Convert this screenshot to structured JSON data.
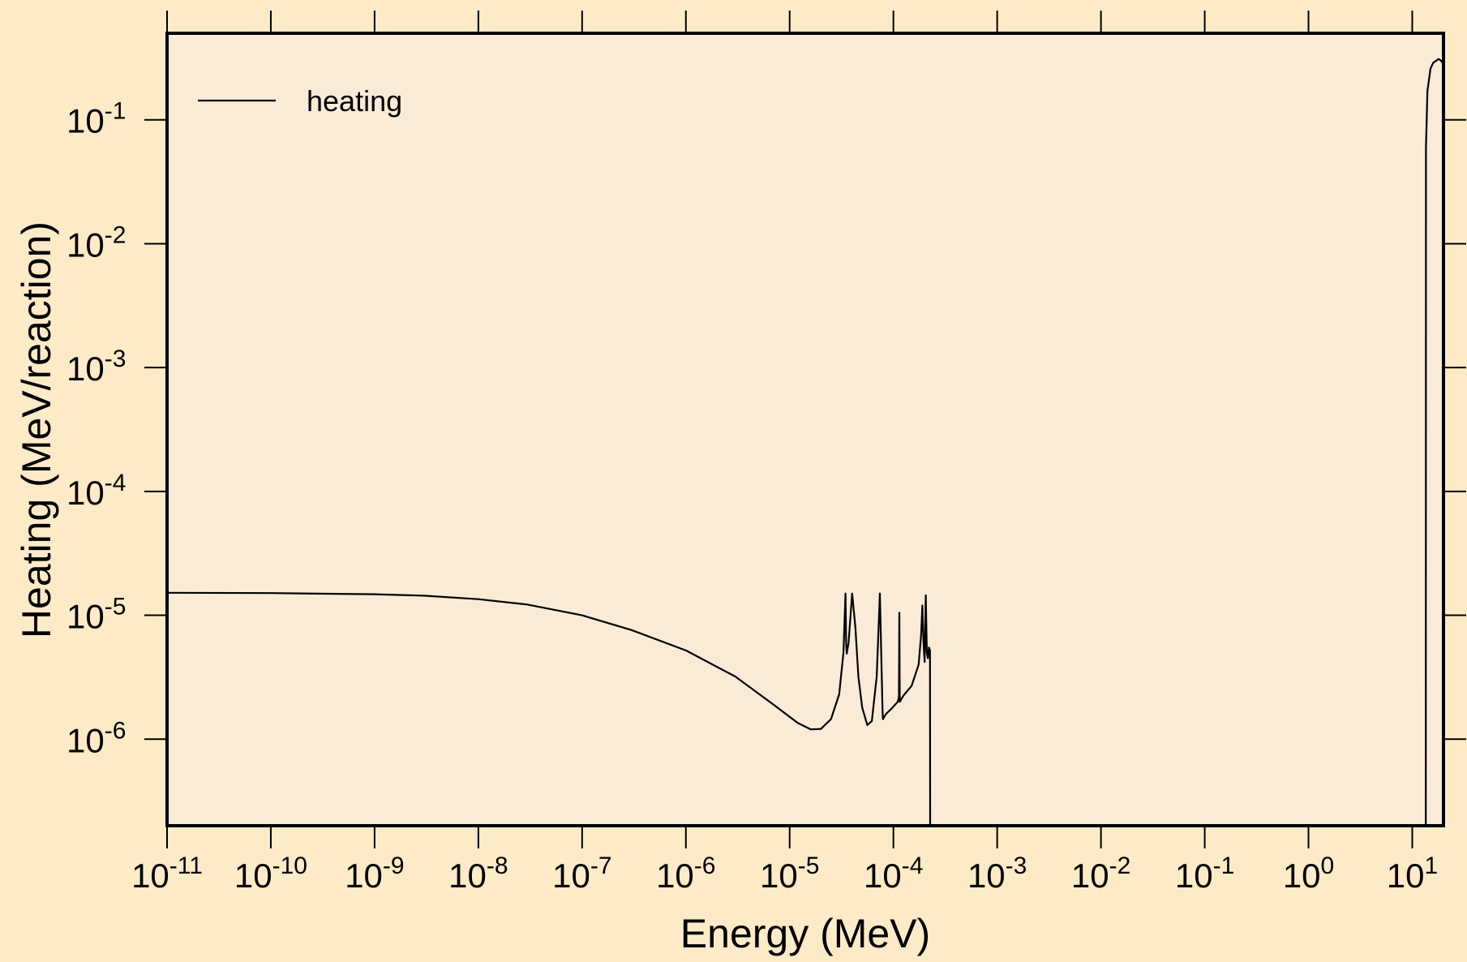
{
  "chart_data": {
    "type": "line",
    "title": "",
    "xlabel": "Energy (MeV)",
    "ylabel": "Heating (MeV/reaction)",
    "xscale": "log",
    "yscale": "log",
    "xlim": [
      1e-11,
      20
    ],
    "ylim": [
      2e-07,
      0.5
    ],
    "grid": false,
    "legend_position": "top-left",
    "background_color": "#fdebc8",
    "plot_background_color": "#faebd7",
    "line_color": "#000000",
    "x_ticks": [
      {
        "value": 1e-11,
        "base": "10",
        "exp": "-11"
      },
      {
        "value": 1e-10,
        "base": "10",
        "exp": "-10"
      },
      {
        "value": 1e-09,
        "base": "10",
        "exp": "-9"
      },
      {
        "value": 1e-08,
        "base": "10",
        "exp": "-8"
      },
      {
        "value": 1e-07,
        "base": "10",
        "exp": "-7"
      },
      {
        "value": 1e-06,
        "base": "10",
        "exp": "-6"
      },
      {
        "value": 1e-05,
        "base": "10",
        "exp": "-5"
      },
      {
        "value": 0.0001,
        "base": "10",
        "exp": "-4"
      },
      {
        "value": 0.001,
        "base": "10",
        "exp": "-3"
      },
      {
        "value": 0.01,
        "base": "10",
        "exp": "-2"
      },
      {
        "value": 0.1,
        "base": "10",
        "exp": "-1"
      },
      {
        "value": 1,
        "base": "10",
        "exp": "0"
      },
      {
        "value": 10,
        "base": "10",
        "exp": "1"
      }
    ],
    "y_ticks": [
      {
        "value": 1e-06,
        "base": "10",
        "exp": "-6"
      },
      {
        "value": 1e-05,
        "base": "10",
        "exp": "-5"
      },
      {
        "value": 0.0001,
        "base": "10",
        "exp": "-4"
      },
      {
        "value": 0.001,
        "base": "10",
        "exp": "-3"
      },
      {
        "value": 0.01,
        "base": "10",
        "exp": "-2"
      },
      {
        "value": 0.1,
        "base": "10",
        "exp": "-1"
      }
    ],
    "series": [
      {
        "name": "heating",
        "x": [
          1e-11,
          1e-10,
          1e-09,
          3e-09,
          1e-08,
          3e-08,
          1e-07,
          3e-07,
          1e-06,
          3e-06,
          7e-06,
          1.2e-05,
          1.6e-05,
          2e-05,
          2.5e-05,
          3e-05,
          3.3e-05,
          3.45e-05,
          3.5e-05,
          3.55e-05,
          3.7e-05,
          4e-05,
          4.3e-05,
          4.6e-05,
          5e-05,
          5.6e-05,
          6.2e-05,
          6.9e-05,
          7.4e-05,
          7.7e-05,
          7.85e-05,
          7.9e-05,
          7.95e-05,
          8.1e-05,
          8.5e-05,
          9.5e-05,
          0.00011,
          0.000113,
          0.000114,
          0.000115,
          0.000125,
          0.00015,
          0.000175,
          0.000185,
          0.00019,
          0.000195,
          0.0002,
          0.000205,
          0.00021,
          0.000215,
          0.00022,
          0.000225,
          0.000226,
          0.000227,
          0.000228,
          13.5,
          13.55,
          14,
          15,
          16,
          17,
          18,
          19,
          20
        ],
        "y": [
          1.52e-05,
          1.51e-05,
          1.48e-05,
          1.44e-05,
          1.35e-05,
          1.22e-05,
          1e-05,
          7.6e-06,
          5.2e-06,
          3.2e-06,
          1.9e-06,
          1.35e-06,
          1.2e-06,
          1.21e-06,
          1.45e-06,
          2.3e-06,
          5e-06,
          1.5e-05,
          6e-06,
          4.9e-06,
          6e-06,
          1.5e-05,
          8e-06,
          3.2e-06,
          1.8e-06,
          1.3e-06,
          1.4e-06,
          3.2e-06,
          1.5e-05,
          3.5e-06,
          1.8e-06,
          1.5e-06,
          1.45e-06,
          1.5e-06,
          1.6e-06,
          1.75e-06,
          2e-06,
          2.2e-06,
          1.05e-05,
          2e-06,
          2.25e-06,
          2.7e-06,
          4e-06,
          7e-06,
          1.2e-05,
          6e-06,
          4.2e-06,
          1.45e-05,
          5e-06,
          4.5e-06,
          5.5e-06,
          5.2e-06,
          2e-07,
          2e-07,
          2e-07,
          2e-07,
          0.06,
          0.17,
          0.26,
          0.29,
          0.3,
          0.31,
          0.3,
          0.28
        ]
      }
    ]
  }
}
